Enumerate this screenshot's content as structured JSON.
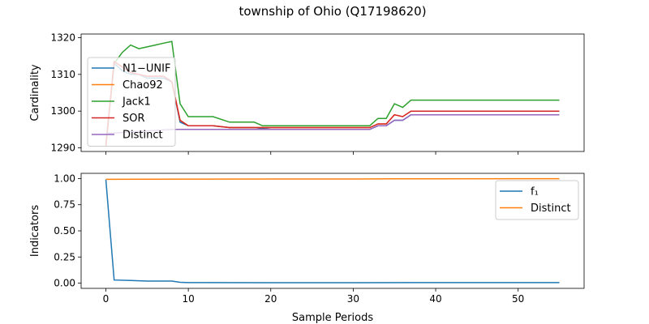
{
  "chart_data": {
    "title": "township of Ohio (Q17198620)",
    "xlabel": "Sample Periods",
    "xlim": [
      -3,
      58
    ],
    "xticks": [
      0,
      10,
      20,
      30,
      40,
      50
    ],
    "panels": [
      {
        "type": "line",
        "ylabel": "Cardinality",
        "ylim": [
          1289,
          1321
        ],
        "yticks": [
          1290,
          1300,
          1310,
          1320
        ],
        "legend_position": "upper-left",
        "series": [
          {
            "name": "N1−UNIF",
            "color": "#1f77b4",
            "points": [
              [
                0,
                1291
              ],
              [
                1,
                1313
              ],
              [
                2,
                1311
              ],
              [
                3,
                1310
              ],
              [
                4,
                1310
              ],
              [
                5,
                1309
              ],
              [
                6,
                1309
              ],
              [
                7,
                1309
              ],
              [
                8,
                1308
              ],
              [
                9,
                1297
              ],
              [
                10,
                1296
              ],
              [
                13,
                1296
              ],
              [
                15,
                1295.5
              ],
              [
                18,
                1295.5
              ],
              [
                20,
                1295
              ],
              [
                32,
                1295
              ],
              [
                33,
                1296
              ],
              [
                34,
                1296
              ],
              [
                35,
                1297.5
              ],
              [
                36,
                1297.5
              ],
              [
                37,
                1299
              ],
              [
                55,
                1299
              ]
            ]
          },
          {
            "name": "Chao92",
            "color": "#ff7f0e",
            "points": [
              [
                0,
                1290.5
              ],
              [
                1,
                1313.5
              ],
              [
                2,
                1312
              ],
              [
                3,
                1310.5
              ],
              [
                4,
                1310
              ],
              [
                5,
                1309.5
              ],
              [
                6,
                1309.5
              ],
              [
                7,
                1309.5
              ],
              [
                8,
                1308
              ],
              [
                9,
                1297.5
              ],
              [
                10,
                1296
              ],
              [
                13,
                1296
              ],
              [
                15,
                1295.5
              ],
              [
                18,
                1295.5
              ],
              [
                20,
                1295.5
              ],
              [
                32,
                1295.5
              ],
              [
                33,
                1296.5
              ],
              [
                34,
                1296.5
              ],
              [
                35,
                1299
              ],
              [
                36,
                1298.5
              ],
              [
                37,
                1300
              ],
              [
                55,
                1300
              ]
            ]
          },
          {
            "name": "Jack1",
            "color": "#2ca02c",
            "points": [
              [
                0,
                1290.5
              ],
              [
                1,
                1313
              ],
              [
                2,
                1316
              ],
              [
                3,
                1318
              ],
              [
                4,
                1317
              ],
              [
                5,
                1317.5
              ],
              [
                6,
                1318
              ],
              [
                7,
                1318.5
              ],
              [
                8,
                1319
              ],
              [
                9,
                1302
              ],
              [
                10,
                1298.5
              ],
              [
                13,
                1298.5
              ],
              [
                15,
                1297
              ],
              [
                18,
                1297
              ],
              [
                19,
                1296
              ],
              [
                32,
                1296
              ],
              [
                33,
                1298
              ],
              [
                34,
                1298
              ],
              [
                35,
                1302
              ],
              [
                36,
                1301
              ],
              [
                37,
                1303
              ],
              [
                55,
                1303
              ]
            ]
          },
          {
            "name": "SOR",
            "color": "#d62728",
            "points": [
              [
                0,
                1290.5
              ],
              [
                1,
                1313.5
              ],
              [
                2,
                1312
              ],
              [
                3,
                1310.5
              ],
              [
                4,
                1310
              ],
              [
                5,
                1309.5
              ],
              [
                6,
                1309.5
              ],
              [
                7,
                1309.5
              ],
              [
                8,
                1308
              ],
              [
                9,
                1297.5
              ],
              [
                10,
                1296
              ],
              [
                13,
                1296
              ],
              [
                15,
                1295.5
              ],
              [
                18,
                1295.5
              ],
              [
                20,
                1295.5
              ],
              [
                32,
                1295.5
              ],
              [
                33,
                1296.5
              ],
              [
                34,
                1296.5
              ],
              [
                35,
                1299
              ],
              [
                36,
                1298.5
              ],
              [
                37,
                1300
              ],
              [
                55,
                1300
              ]
            ]
          },
          {
            "name": "Distinct",
            "color": "#9467bd",
            "points": [
              [
                0,
                1294
              ],
              [
                1,
                1294
              ],
              [
                8,
                1295
              ],
              [
                20,
                1295
              ],
              [
                32,
                1295
              ],
              [
                33,
                1296
              ],
              [
                34,
                1296
              ],
              [
                35,
                1297.5
              ],
              [
                36,
                1297.5
              ],
              [
                37,
                1299
              ],
              [
                55,
                1299
              ]
            ]
          }
        ]
      },
      {
        "type": "line",
        "ylabel": "Indicators",
        "ylim": [
          -0.05,
          1.05
        ],
        "yticks": [
          0.0,
          0.25,
          0.5,
          0.75,
          1.0
        ],
        "ytick_labels": [
          "0.00",
          "0.25",
          "0.50",
          "0.75",
          "1.00"
        ],
        "legend_position": "upper-right",
        "series": [
          {
            "name": "f₁",
            "color": "#1f77b4",
            "points": [
              [
                0,
                0.99
              ],
              [
                1,
                0.03
              ],
              [
                3,
                0.025
              ],
              [
                5,
                0.02
              ],
              [
                8,
                0.02
              ],
              [
                9,
                0.008
              ],
              [
                10,
                0.005
              ],
              [
                20,
                0.004
              ],
              [
                30,
                0.004
              ],
              [
                40,
                0.005
              ],
              [
                55,
                0.005
              ]
            ]
          },
          {
            "name": "Distinct",
            "color": "#ff7f0e",
            "points": [
              [
                0,
                0.993
              ],
              [
                10,
                0.995
              ],
              [
                20,
                0.996
              ],
              [
                30,
                0.996
              ],
              [
                35,
                0.997
              ],
              [
                40,
                0.998
              ],
              [
                55,
                0.999
              ]
            ]
          }
        ]
      }
    ]
  }
}
